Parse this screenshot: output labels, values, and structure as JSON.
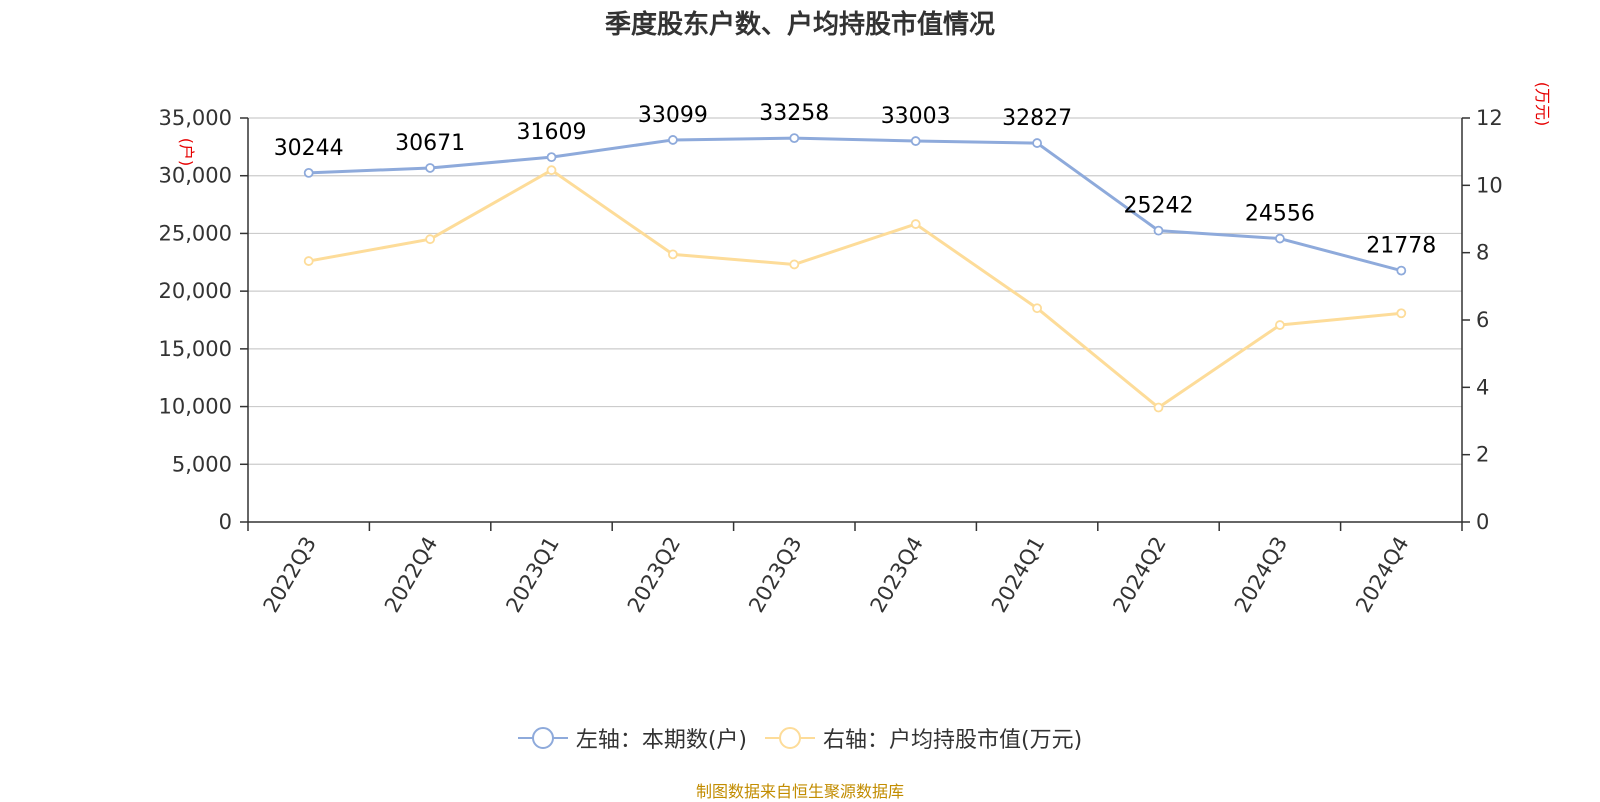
{
  "chart_data": {
    "type": "line",
    "title": "季度股东户数、户均持股市值情况",
    "categories": [
      "2022Q3",
      "2022Q4",
      "2023Q1",
      "2023Q2",
      "2023Q3",
      "2023Q4",
      "2024Q1",
      "2024Q2",
      "2024Q3",
      "2024Q4"
    ],
    "series": [
      {
        "name": "左轴：本期数(户)",
        "axis": "left",
        "color": "#8eaadb",
        "values": [
          30244,
          30671,
          31609,
          33099,
          33258,
          33003,
          32827,
          25242,
          24556,
          21778
        ],
        "data_labels": [
          "30244",
          "30671",
          "31609",
          "33099",
          "33258",
          "33003",
          "32827",
          "25242",
          "24556",
          "21778"
        ]
      },
      {
        "name": "右轴：户均持股市值(万元)",
        "axis": "right",
        "color": "#fddc99",
        "values": [
          7.75,
          8.4,
          10.45,
          7.95,
          7.65,
          8.85,
          6.35,
          3.4,
          5.85,
          6.2
        ]
      }
    ],
    "left_axis": {
      "label": "(户)",
      "ylim": [
        0,
        35000
      ],
      "ticks": [
        0,
        5000,
        10000,
        15000,
        20000,
        25000,
        30000,
        35000
      ],
      "tick_labels": [
        "0",
        "5,000",
        "10,000",
        "15,000",
        "20,000",
        "25,000",
        "30,000",
        "35,000"
      ]
    },
    "right_axis": {
      "label": "(万元)",
      "ylim": [
        0,
        12
      ],
      "ticks": [
        0,
        2,
        4,
        6,
        8,
        10,
        12
      ],
      "tick_labels": [
        "0",
        "2",
        "4",
        "6",
        "8",
        "10",
        "12"
      ]
    },
    "grid": true,
    "legend_position": "bottom-center"
  },
  "colors": {
    "axis_label_red": "#e60000",
    "grid": "#cccccc",
    "axis": "#333333"
  },
  "source": "制图数据来自恒生聚源数据库"
}
